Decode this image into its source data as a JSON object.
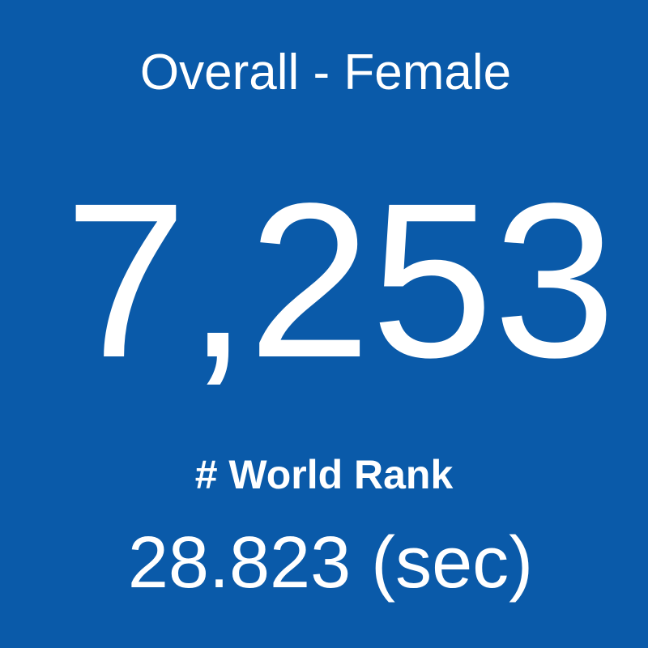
{
  "tile": {
    "title": "Overall - Female",
    "value": "7,253",
    "label": "# World Rank",
    "time": "28.823 (sec)"
  }
}
